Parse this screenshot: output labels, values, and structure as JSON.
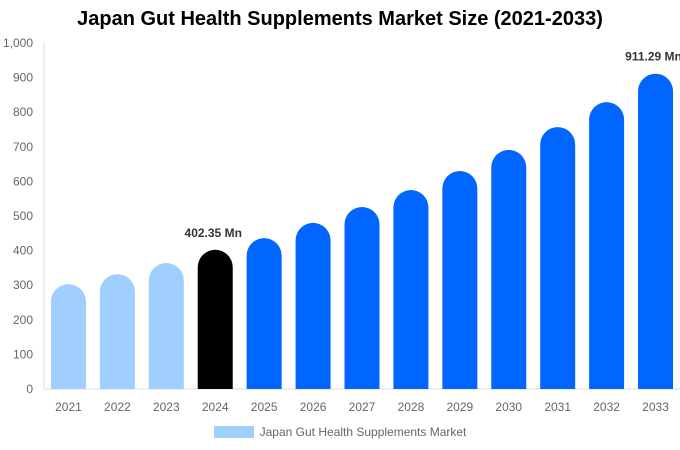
{
  "chart_data": {
    "type": "bar",
    "title": "Japan Gut Health Supplements Market Size (2021-2033)",
    "categories": [
      "2021",
      "2022",
      "2023",
      "2024",
      "2025",
      "2026",
      "2027",
      "2028",
      "2029",
      "2030",
      "2031",
      "2032",
      "2033"
    ],
    "series": [
      {
        "name": "Japan Gut Health Supplements Market",
        "values": [
          303,
          332,
          364,
          402.35,
          436,
          480,
          526,
          575,
          630,
          691,
          757,
          829,
          911.29
        ]
      }
    ],
    "bar_colors": [
      "#A0CFFF",
      "#A0CFFF",
      "#A0CFFF",
      "#000000",
      "#0066FF",
      "#0066FF",
      "#0066FF",
      "#0066FF",
      "#0066FF",
      "#0066FF",
      "#0066FF",
      "#0066FF",
      "#0066FF"
    ],
    "data_labels": [
      {
        "category": "2024",
        "text": "402.35 Mn"
      },
      {
        "category": "2033",
        "text": "911.29 Mn"
      }
    ],
    "yticks": [
      "0",
      "100",
      "200",
      "300",
      "400",
      "500",
      "600",
      "700",
      "800",
      "900",
      "1,000"
    ],
    "ylim": [
      0,
      1000
    ],
    "xlabel": "",
    "ylabel": "",
    "grid": false,
    "legend": {
      "position": "bottom",
      "color": "#A0CFFF"
    }
  }
}
